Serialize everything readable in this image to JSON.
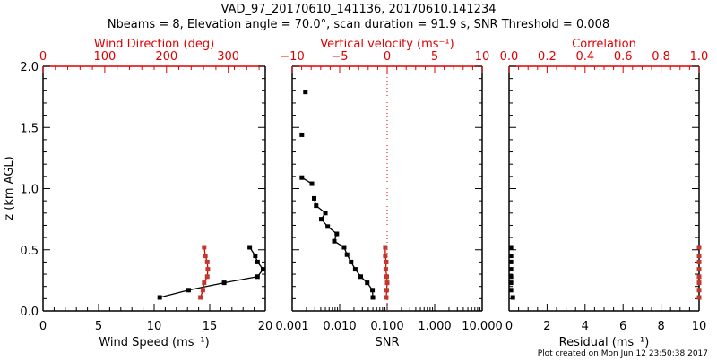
{
  "title_line1": "VAD_97_20170610_141136, 20170610.141234",
  "title_line2": "Nbeams = 8, Elevation angle = 70.0°, scan duration = 91.9 s, SNR Threshold = 0.008",
  "footer": "Plot created on Mon Jun 12 23:50:38 2017",
  "colors": {
    "primary": "#000000",
    "secondary": "#e00000",
    "marker_red": "#c0392b"
  },
  "chart_data": [
    {
      "type": "line",
      "ylabel": "z (km AGL)",
      "ylim": [
        0,
        2
      ],
      "yticks": [
        "0.0",
        "0.5",
        "1.0",
        "1.5",
        "2.0"
      ],
      "xlabel": "Wind Speed (ms⁻¹)",
      "xlim": [
        0,
        20
      ],
      "xticks": [
        "0",
        "5",
        "10",
        "15",
        "20"
      ],
      "top_xlabel": "Wind Direction (deg)",
      "top_xlim": [
        0,
        360
      ],
      "top_xticks": [
        "0",
        "100",
        "200",
        "300"
      ],
      "top_xtick_values": [
        0,
        100,
        200,
        300
      ],
      "series": [
        {
          "name": "Wind Speed",
          "axis": "bottom",
          "x": [
            10.5,
            13.1,
            16.3,
            19.3,
            19.8,
            19.3,
            19.1,
            18.6
          ],
          "y": [
            0.11,
            0.17,
            0.23,
            0.28,
            0.34,
            0.4,
            0.45,
            0.52
          ]
        },
        {
          "name": "Wind Direction",
          "axis": "top",
          "x": [
            255,
            259,
            261,
            266,
            267,
            266,
            263,
            261
          ],
          "y": [
            0.11,
            0.17,
            0.23,
            0.28,
            0.34,
            0.4,
            0.45,
            0.52
          ]
        }
      ]
    },
    {
      "type": "line",
      "ylim": [
        0,
        2
      ],
      "xlabel": "SNR",
      "xscale": "log",
      "xlim": [
        0.001,
        10
      ],
      "xticks": [
        "0.001",
        "0.010",
        "0.100",
        "1.000",
        "10.000"
      ],
      "top_xlabel": "Vertical velocity (ms⁻¹)",
      "top_xlim": [
        -10,
        10
      ],
      "top_xticks": [
        "−10",
        "−5",
        "0",
        "5",
        "10"
      ],
      "top_xtick_values": [
        -10,
        -5,
        0,
        5,
        10
      ],
      "series": [
        {
          "name": "SNR",
          "axis": "bottom",
          "x": [
            0.0019,
            0.0016,
            0.0016,
            0.0026,
            0.0029,
            0.0032,
            0.005,
            0.0041,
            0.0056,
            0.0087,
            0.0077,
            0.0124,
            0.0143,
            0.0174,
            0.0213,
            0.0278,
            0.038,
            0.049,
            0.05
          ],
          "y": [
            1.79,
            1.44,
            1.09,
            1.04,
            0.92,
            0.86,
            0.8,
            0.75,
            0.69,
            0.63,
            0.57,
            0.52,
            0.46,
            0.4,
            0.34,
            0.28,
            0.23,
            0.17,
            0.11
          ],
          "segments": [
            [
              0
            ],
            [
              1
            ],
            [
              2,
              3
            ],
            [
              4,
              18
            ]
          ]
        },
        {
          "name": "Vertical velocity",
          "axis": "top",
          "x": [
            -0.1,
            -0.05,
            0.0,
            -0.05,
            -0.15,
            -0.1,
            -0.2,
            -0.2
          ],
          "y": [
            0.11,
            0.17,
            0.23,
            0.28,
            0.34,
            0.4,
            0.45,
            0.52
          ]
        }
      ]
    },
    {
      "type": "scatter",
      "ylim": [
        0,
        2
      ],
      "xlabel": "Residual (ms⁻¹)",
      "xlim": [
        0,
        10
      ],
      "xticks": [
        "0",
        "2",
        "4",
        "6",
        "8",
        "10"
      ],
      "top_xlabel": "Correlation",
      "top_xlim": [
        0,
        1
      ],
      "top_xticks": [
        "0.0",
        "0.2",
        "0.4",
        "0.6",
        "0.8",
        "1.0"
      ],
      "top_xtick_values": [
        0,
        0.2,
        0.4,
        0.6,
        0.8,
        1.0
      ],
      "series": [
        {
          "name": "Residual",
          "axis": "bottom",
          "x": [
            0.2,
            0.1,
            0.1,
            0.1,
            0.1,
            0.1,
            0.1,
            0.1
          ],
          "y": [
            0.11,
            0.17,
            0.23,
            0.28,
            0.34,
            0.4,
            0.45,
            0.52
          ]
        },
        {
          "name": "Correlation",
          "axis": "top",
          "x": [
            1.0,
            1.0,
            1.0,
            1.0,
            1.0,
            1.0,
            1.0,
            1.0
          ],
          "y": [
            0.11,
            0.17,
            0.23,
            0.28,
            0.34,
            0.4,
            0.45,
            0.52
          ]
        }
      ]
    }
  ]
}
